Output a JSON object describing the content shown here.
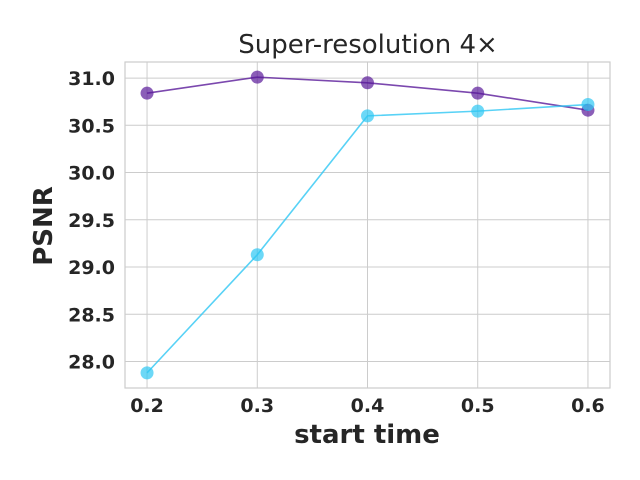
{
  "chart_data": {
    "type": "line",
    "title": "Super-resolution 4×",
    "xlabel": "start time",
    "ylabel": "PSNR",
    "x": [
      0.2,
      0.3,
      0.4,
      0.5,
      0.6
    ],
    "xticks": [
      "0.2",
      "0.3",
      "0.4",
      "0.5",
      "0.6"
    ],
    "yticks": [
      "28.0",
      "28.5",
      "29.0",
      "29.5",
      "30.0",
      "30.5",
      "31.0"
    ],
    "xlim": [
      0.18,
      0.62
    ],
    "ylim": [
      27.72,
      31.17
    ],
    "grid": true,
    "legend": null,
    "series": [
      {
        "color": "#5a1a9a",
        "values": [
          30.84,
          31.01,
          30.95,
          30.84,
          30.66
        ]
      },
      {
        "color": "#2ec7f4",
        "values": [
          27.88,
          29.13,
          30.6,
          30.65,
          30.72
        ]
      }
    ]
  }
}
